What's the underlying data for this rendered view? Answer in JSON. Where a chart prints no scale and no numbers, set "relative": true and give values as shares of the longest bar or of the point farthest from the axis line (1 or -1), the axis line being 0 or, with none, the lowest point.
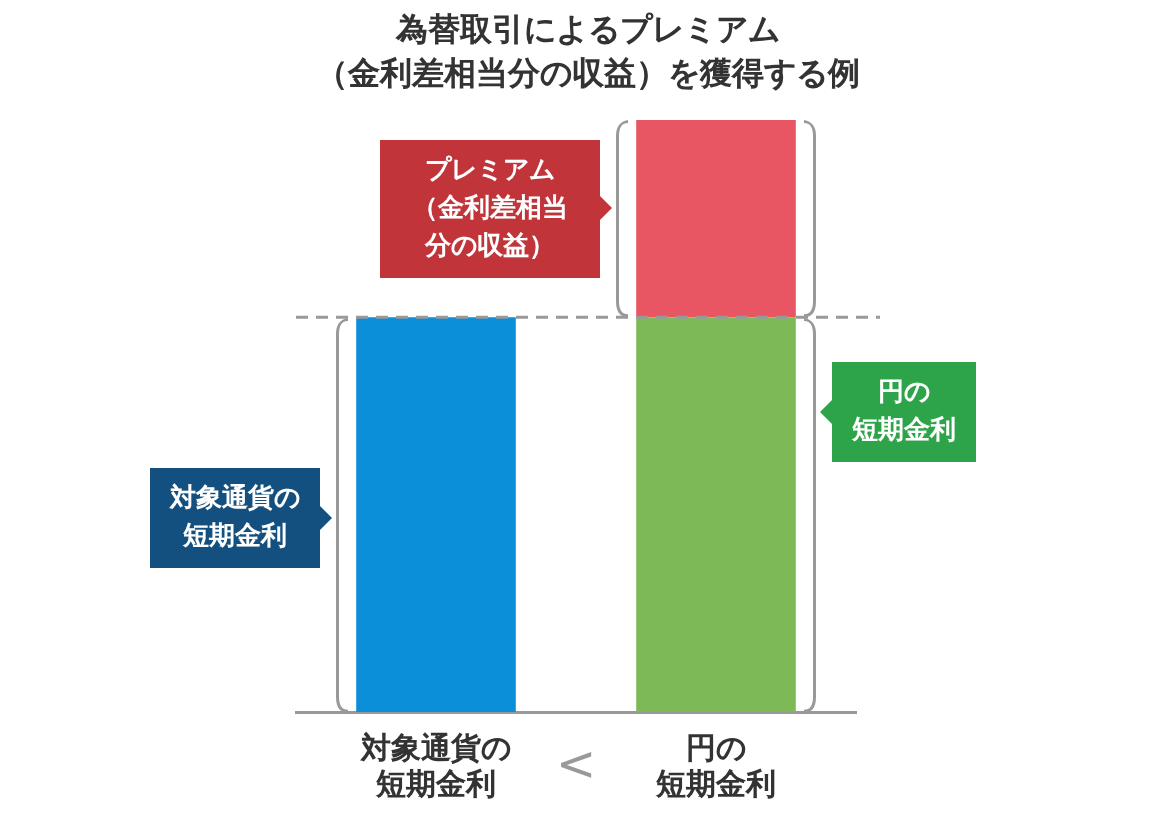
{
  "chart_data": {
    "type": "bar",
    "title": "為替取引によるプレミアム（金利差相当分の収益）を獲得する例",
    "categories": [
      "対象通貨の短期金利",
      "円の短期金利"
    ],
    "stacked": true,
    "relative": true,
    "series": [
      {
        "colors": [
          "#0a8fd8",
          "#7dba57"
        ],
        "values": [
          0.667,
          0.667
        ]
      },
      {
        "color": "#e85563",
        "values": [
          null,
          0.333
        ]
      }
    ],
    "ref_lines": [
      {
        "axis": "y",
        "value": 0.667,
        "color": "#999999",
        "line_style": "dashed"
      }
    ],
    "annotations": [
      "プレミアム（金利差相当分の収益）",
      "円の短期金利",
      "対象通貨の短期金利",
      "<"
    ]
  }
}
